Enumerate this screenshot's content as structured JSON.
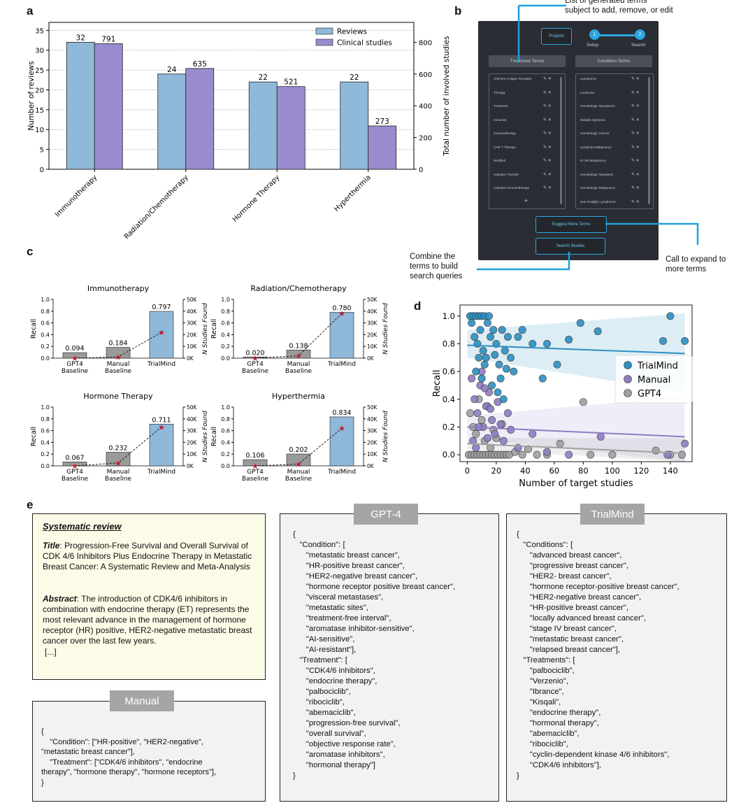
{
  "labels": {
    "a": "a",
    "b": "b",
    "c": "c",
    "d": "d",
    "e": "e"
  },
  "chart_data": [
    {
      "id": "a",
      "type": "bar",
      "categories": [
        "Immunotherapy",
        "Radiation/Chemotherapy",
        "Hormone Therapy",
        "Hyperthermia"
      ],
      "series": [
        {
          "name": "Reviews",
          "axis": "left",
          "values": [
            32,
            24,
            22,
            22
          ],
          "color": "#8fb8d9"
        },
        {
          "name": "Clinical studies",
          "axis": "right",
          "values": [
            791,
            635,
            521,
            273
          ],
          "color": "#9a8bcf"
        }
      ],
      "ylabel": "Number of reviews",
      "y2label": "Total number of involved studies",
      "ylim": [
        0,
        37
      ],
      "y2lim": [
        0,
        925
      ],
      "yticks": [
        0,
        5,
        10,
        15,
        20,
        25,
        30,
        35
      ],
      "y2ticks": [
        0,
        200,
        400,
        600,
        800
      ],
      "legend": "top-right",
      "grid": "horizontal dotted"
    },
    {
      "id": "c",
      "type": "bar",
      "subplots": [
        {
          "title": "Immunotherapy",
          "categories": [
            "GPT4\nBaseline",
            "Manual\nBaseline",
            "TrialMind"
          ],
          "recall": [
            0.094,
            0.184,
            0.797
          ],
          "recall_labels": [
            "0.094",
            "0.184",
            "0.797"
          ],
          "studies_found": [
            0,
            1000,
            22000
          ]
        },
        {
          "title": "Radiation/Chemotherapy",
          "categories": [
            "GPT4\nBaseline",
            "Manual\nBaseline",
            "TrialMind"
          ],
          "recall": [
            0.02,
            0.138,
            0.78
          ],
          "recall_labels": [
            "0.020",
            "0.138",
            "0.780"
          ],
          "studies_found": [
            0,
            2000,
            38000
          ]
        },
        {
          "title": "Hormone Therapy",
          "categories": [
            "GPT4\nBaseline",
            "Manual\nBaseline",
            "TrialMind"
          ],
          "recall": [
            0.067,
            0.232,
            0.711
          ],
          "recall_labels": [
            "0.067",
            "0.232",
            "0.711"
          ],
          "studies_found": [
            0,
            2500,
            33000
          ]
        },
        {
          "title": "Hyperthermia",
          "categories": [
            "GPT4\nBaseline",
            "Manual\nBaseline",
            "TrialMind"
          ],
          "recall": [
            0.106,
            0.202,
            0.834
          ],
          "recall_labels": [
            "0.106",
            "0.202",
            "0.834"
          ],
          "studies_found": [
            0,
            1500,
            32000
          ]
        }
      ],
      "ylabel": "Recall",
      "y2label": "N Studies Found",
      "ylim": [
        0,
        1.0
      ],
      "yticks": [
        "0.0",
        "0.2",
        "0.4",
        "0.6",
        "0.8",
        "1.0"
      ],
      "y2lim": [
        0,
        50000
      ],
      "y2ticks": [
        "0K",
        "10K",
        "20K",
        "30K",
        "40K",
        "50K"
      ],
      "bar_colors": [
        "#9a9a9a",
        "#9a9a9a",
        "#8fb8d9"
      ],
      "line": "dashed black with red star markers"
    },
    {
      "id": "d",
      "type": "scatter",
      "xlabel": "Number of target studies",
      "ylabel": "Recall",
      "xlim": [
        -5,
        155
      ],
      "ylim": [
        -0.05,
        1.08
      ],
      "xticks": [
        0,
        20,
        40,
        60,
        80,
        100,
        120,
        140
      ],
      "yticks": [
        "0.0",
        "0.2",
        "0.4",
        "0.6",
        "0.8",
        "1.0"
      ],
      "legend": "center-right",
      "series": [
        {
          "name": "TrialMind",
          "color": "#2c8fc0",
          "trend": [
            [
              0,
              0.79
            ],
            [
              150,
              0.73
            ]
          ],
          "points": [
            [
              2,
              1.0
            ],
            [
              4,
              1.0
            ],
            [
              6,
              1.0
            ],
            [
              8,
              1.0
            ],
            [
              10,
              1.0
            ],
            [
              12,
              1.0
            ],
            [
              15,
              1.0
            ],
            [
              3,
              0.95
            ],
            [
              5,
              0.85
            ],
            [
              7,
              0.8
            ],
            [
              9,
              0.9
            ],
            [
              11,
              0.75
            ],
            [
              13,
              0.7
            ],
            [
              14,
              0.95
            ],
            [
              16,
              0.85
            ],
            [
              18,
              0.9
            ],
            [
              20,
              0.8
            ],
            [
              22,
              0.65
            ],
            [
              24,
              0.9
            ],
            [
              26,
              0.75
            ],
            [
              28,
              0.85
            ],
            [
              30,
              0.7
            ],
            [
              6,
              0.6
            ],
            [
              10,
              0.55
            ],
            [
              17,
              0.5
            ],
            [
              21,
              0.45
            ],
            [
              25,
              0.4
            ],
            [
              32,
              0.6
            ],
            [
              35,
              0.85
            ],
            [
              38,
              0.9
            ],
            [
              45,
              0.8
            ],
            [
              55,
              0.8
            ],
            [
              52,
              0.55
            ],
            [
              62,
              0.65
            ],
            [
              70,
              0.83
            ],
            [
              78,
              0.95
            ],
            [
              90,
              0.89
            ],
            [
              140,
              1.0
            ],
            [
              135,
              0.82
            ],
            [
              150,
              0.82
            ],
            [
              8,
              0.7
            ],
            [
              12,
              0.65
            ],
            [
              19,
              0.72
            ],
            [
              23,
              0.55
            ],
            [
              27,
              0.62
            ]
          ]
        },
        {
          "name": "Manual",
          "color": "#8e7cc3",
          "trend": [
            [
              0,
              0.2
            ],
            [
              150,
              0.13
            ]
          ],
          "points": [
            [
              3,
              0.55
            ],
            [
              5,
              0.4
            ],
            [
              7,
              0.3
            ],
            [
              9,
              0.5
            ],
            [
              11,
              0.2
            ],
            [
              13,
              0.35
            ],
            [
              15,
              0.45
            ],
            [
              17,
              0.25
            ],
            [
              19,
              0.15
            ],
            [
              21,
              0.38
            ],
            [
              23,
              0.22
            ],
            [
              25,
              0.1
            ],
            [
              28,
              0.3
            ],
            [
              30,
              0.18
            ],
            [
              4,
              0.1
            ],
            [
              6,
              0.05
            ],
            [
              8,
              0.2
            ],
            [
              10,
              0.6
            ],
            [
              12,
              0.48
            ],
            [
              14,
              0.12
            ],
            [
              16,
              0.33
            ],
            [
              35,
              0.05
            ],
            [
              45,
              0.15
            ],
            [
              55,
              0.02
            ],
            [
              70,
              0.0
            ],
            [
              92,
              0.13
            ],
            [
              138,
              0.0
            ],
            [
              150,
              0.08
            ]
          ]
        },
        {
          "name": "GPT4",
          "color": "#a0a0a0",
          "trend": [
            [
              0,
              0.08
            ],
            [
              150,
              0.01
            ]
          ],
          "points": [
            [
              1,
              0.0
            ],
            [
              3,
              0.0
            ],
            [
              5,
              0.0
            ],
            [
              7,
              0.0
            ],
            [
              9,
              0.0
            ],
            [
              11,
              0.0
            ],
            [
              13,
              0.0
            ],
            [
              15,
              0.0
            ],
            [
              17,
              0.0
            ],
            [
              19,
              0.0
            ],
            [
              21,
              0.0
            ],
            [
              23,
              0.0
            ],
            [
              25,
              0.0
            ],
            [
              27,
              0.0
            ],
            [
              29,
              0.0
            ],
            [
              2,
              0.3
            ],
            [
              4,
              0.2
            ],
            [
              6,
              0.15
            ],
            [
              8,
              0.4
            ],
            [
              10,
              0.25
            ],
            [
              12,
              0.1
            ],
            [
              14,
              0.35
            ],
            [
              16,
              0.05
            ],
            [
              18,
              0.18
            ],
            [
              20,
              0.12
            ],
            [
              24,
              0.22
            ],
            [
              33,
              0.02
            ],
            [
              38,
              0.0
            ],
            [
              42,
              0.04
            ],
            [
              48,
              0.0
            ],
            [
              55,
              0.0
            ],
            [
              64,
              0.08
            ],
            [
              80,
              0.38
            ],
            [
              85,
              0.0
            ],
            [
              100,
              0.0
            ],
            [
              130,
              0.03
            ],
            [
              140,
              0.0
            ],
            [
              148,
              0.0
            ]
          ]
        }
      ]
    }
  ],
  "panel_b": {
    "callout_top": [
      "List of generated terms",
      "subject to add, remove, or edit"
    ],
    "callout_left": [
      "Combine the",
      "terms to build",
      "search queries"
    ],
    "callout_right": [
      "Call to expand to",
      "more terms"
    ],
    "projects_label": "Projects",
    "step1": "1",
    "step2": "2",
    "step1_label": "Setup",
    "step2_label": "Search",
    "treatment_header": "Treatment Terms",
    "condition_header": "Condition Terms",
    "treatment_terms": [
      "Chimeric Antigen Receptor",
      "Therapy",
      "Treatment",
      "Immunity",
      "Immunotherapy",
      "CAR T Therapy",
      "Modified",
      "Adoptive Transfer",
      "Adoptive Immunotherapy"
    ],
    "condition_terms": [
      "Lymphoma",
      "Leukemia",
      "Hematologic Neoplasms",
      "Multiple Myeloma",
      "Hematologic Cancer",
      "Lymphoid Malignancy",
      "B Cell Malignancy",
      "Hematologic Neoplasm",
      "Hematologic Malignancy",
      "Non-Hodgkin Lymphoma"
    ],
    "add_symbol": "+",
    "suggest_label": "Suggest More Terms",
    "search_label": "Search Studies"
  },
  "panel_e": {
    "review_heading": "Systematic review",
    "title_label": "Title",
    "title_text": ": Progression-Free Survival and Overall Survival of CDK 4/6 Inhibitors Plus Endocrine Therapy in Metastatic Breast Cancer: A Systematic Review and Meta-Analysis",
    "abstract_label": "Abstract",
    "abstract_text": ": The introduction of CDK4/6 inhibitors in combination with endocrine therapy (ET) represents the most relevant advance in the management of hormone receptor (HR) positive, HER2-negative metastatic breast cancer over the last few years.",
    "ellipsis": "[...]",
    "manual_tag": "Manual",
    "gpt4_tag": "GPT-4",
    "trialmind_tag": "TrialMind",
    "manual_code": "{\n    \"Condition\": [\"HR-positive\", \"HER2-negative\",\n\"metastatic breast cancer\"],\n    \"Treatment\": [\"CDK4/6 inhibitors\", \"endocrine\ntherapy\", \"hormone therapy\", \"hormone receptors\"],\n}",
    "gpt4_code": "{\n   \"Condition\": [\n      \"metastatic breast cancer\",\n      \"HR-positive breast cancer\",\n      \"HER2-negative breast cancer\",\n      \"hormone receptor positive breast cancer\",\n      \"visceral metastases\",\n      \"metastatic sites\",\n      \"treatment-free interval\",\n      \"aromatase inhibitor-sensitive\",\n      \"AI-sensitive\",\n      \"AI-resistant\"],\n   \"Treatment\": [\n      \"CDK4/6 inhibitors\",\n      \"endocrine therapy\",\n      \"palbociclib\",\n      \"ribociclib\",\n      \"abemaciclib\",\n      \"progression-free survival\",\n      \"overall survival\",\n      \"objective response rate\",\n      \"aromatase inhibitors\",\n      \"hormonal therapy\"]\n}",
    "trialmind_code": "{\n   \"Conditions\": [\n      \"advanced breast cancer\",\n      \"progressive breast cancer\",\n      \"HER2- breast cancer\",\n      \"hormone receptor-positive breast cancer\",\n      \"HER2-negative breast cancer\",\n      \"HR-positive breast cancer\",\n      \"locally advanced breast cancer\",\n      \"stage IV breast cancer\",\n      \"metastatic breast cancer\",\n      \"relapsed breast cancer\"],\n   \"Treatments\": [\n      \"palbociclib\",\n      \"Verzenio\",\n      \"Ibrance\",\n      \"Kisqali\",\n      \"endocrine therapy\",\n      \"hormonal therapy\",\n      \"abemaciclib\",\n      \"ribociclib\",\n      \"cyclin-dependent kinase 4/6 inhibitors\",\n      \"CDK4/6 inhibitors\"],\n}"
  }
}
